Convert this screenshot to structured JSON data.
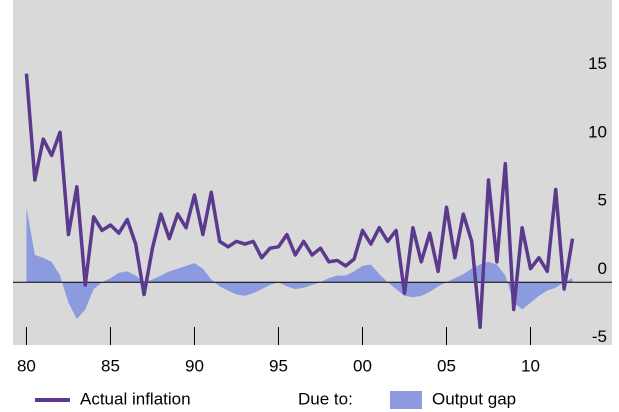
{
  "chart_data": {
    "type": "line",
    "x": [
      1980,
      1980.5,
      1981,
      1981.5,
      1982,
      1982.5,
      1983,
      1983.5,
      1984,
      1984.5,
      1985,
      1985.5,
      1986,
      1986.5,
      1987,
      1987.5,
      1988,
      1988.5,
      1989,
      1989.5,
      1990,
      1990.5,
      1991,
      1991.5,
      1992,
      1992.5,
      1993,
      1993.5,
      1994,
      1994.5,
      1995,
      1995.5,
      1996,
      1996.5,
      1997,
      1997.5,
      1998,
      1998.5,
      1999,
      1999.5,
      2000,
      2000.5,
      2001,
      2001.5,
      2002,
      2002.5,
      2003,
      2003.5,
      2004,
      2004.5,
      2005,
      2005.5,
      2006,
      2006.5,
      2007,
      2007.5,
      2008,
      2008.5,
      2009,
      2009.5,
      2010,
      2010.5,
      2011,
      2011.5,
      2012,
      2012.5
    ],
    "series": [
      {
        "name": "Output gap",
        "type": "area",
        "color": "#8c9be0",
        "values": [
          5.5,
          2,
          1.8,
          1.5,
          0.5,
          -1.5,
          -2.7,
          -2,
          -0.5,
          0,
          0.3,
          0.7,
          0.8,
          0.5,
          0,
          0.2,
          0.5,
          0.8,
          1,
          1.2,
          1.4,
          1,
          0.2,
          -0.3,
          -0.6,
          -0.9,
          -1,
          -0.8,
          -0.5,
          -0.2,
          0,
          -0.3,
          -0.5,
          -0.4,
          -0.2,
          0,
          0.3,
          0.5,
          0.5,
          0.8,
          1.2,
          1.3,
          0.6,
          0,
          -0.5,
          -1,
          -1.1,
          -1,
          -0.7,
          -0.3,
          0,
          0.3,
          0.6,
          1,
          1.3,
          1.5,
          1.3,
          0.5,
          -1.5,
          -2,
          -1.5,
          -1,
          -0.6,
          -0.4,
          0,
          0.3
        ]
      },
      {
        "name": "Actual inflation",
        "type": "line",
        "color": "#5b3a8e",
        "values": [
          15.3,
          7.5,
          10.5,
          9.3,
          11,
          3.5,
          7,
          -0.2,
          4.8,
          3.8,
          4.2,
          3.6,
          4.6,
          2.8,
          -0.9,
          2.5,
          5,
          3.2,
          5,
          4,
          6.4,
          3.5,
          6.6,
          3,
          2.6,
          3,
          2.8,
          3,
          1.8,
          2.5,
          2.6,
          3.5,
          2,
          3,
          2,
          2.5,
          1.5,
          1.6,
          1.2,
          1.7,
          3.8,
          2.8,
          4,
          3,
          3.8,
          -0.8,
          4,
          1.5,
          3.6,
          0.8,
          5.5,
          1.8,
          5,
          3,
          -3.3,
          7.5,
          1.5,
          8.7,
          -2,
          4,
          1,
          1.8,
          0.8,
          6.8,
          -0.5,
          3.2
        ]
      }
    ],
    "legend_note": "Due to:",
    "xlim": [
      1979.2,
      2014.85
    ],
    "xticks": [
      {
        "value": 1980,
        "label": "80"
      },
      {
        "value": 1985,
        "label": "85"
      },
      {
        "value": 1990,
        "label": "90"
      },
      {
        "value": 1995,
        "label": "95"
      },
      {
        "value": 2000,
        "label": "00"
      },
      {
        "value": 2005,
        "label": "05"
      },
      {
        "value": 2010,
        "label": "10"
      }
    ],
    "ylim": [
      -4.6,
      20.7
    ],
    "yticks": [
      -5,
      0,
      5,
      10,
      15
    ],
    "grid": false
  }
}
